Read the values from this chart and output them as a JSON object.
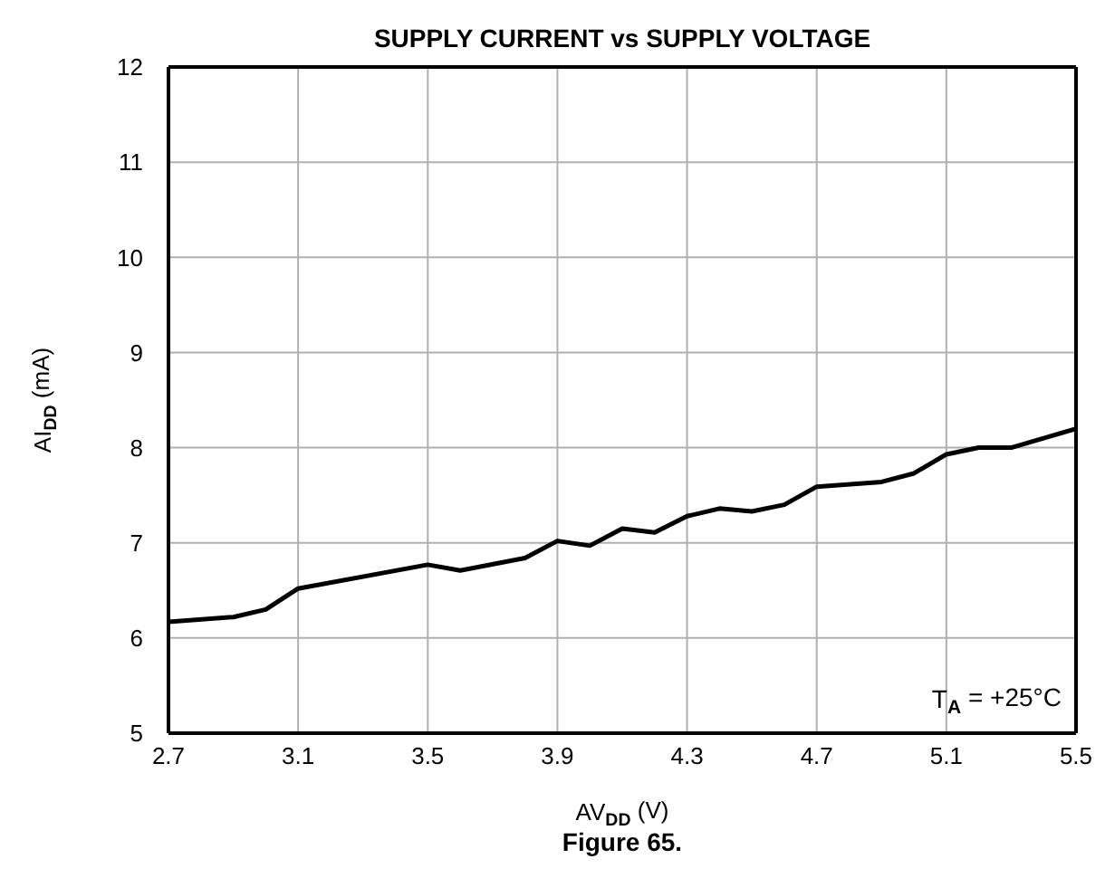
{
  "chart_data": {
    "type": "line",
    "title": "SUPPLY CURRENT vs SUPPLY VOLTAGE",
    "xlabel": "AV$_{DD}$ (V)",
    "ylabel": "AI$_{DD}$ (mA)",
    "annotations": [
      "T$_{A}$ = +25°C",
      "Figure 65."
    ],
    "series": [
      {
        "color": "#000000",
        "x": [
          2.7,
          2.9,
          3.0,
          3.1,
          3.5,
          3.6,
          3.8,
          3.9,
          4.0,
          4.1,
          4.2,
          4.3,
          4.4,
          4.5,
          4.6,
          4.7,
          4.9,
          5.0,
          5.1,
          5.2,
          5.3,
          5.5
        ],
        "values": [
          6.17,
          6.22,
          6.3,
          6.52,
          6.77,
          6.71,
          6.84,
          7.02,
          6.97,
          7.15,
          7.11,
          7.28,
          7.36,
          7.33,
          7.4,
          7.59,
          7.64,
          7.73,
          7.93,
          8.0,
          8.0,
          8.2
        ]
      }
    ],
    "xlim": [
      2.7,
      5.5
    ],
    "xticks": [
      2.7,
      3.1,
      3.5,
      3.9,
      4.3,
      4.7,
      5.1,
      5.5
    ],
    "ylim": [
      5,
      12
    ],
    "yticks": [
      5,
      6,
      7,
      8,
      9,
      10,
      11,
      12
    ],
    "grid": true,
    "marker": "none",
    "line_style": "solid"
  }
}
